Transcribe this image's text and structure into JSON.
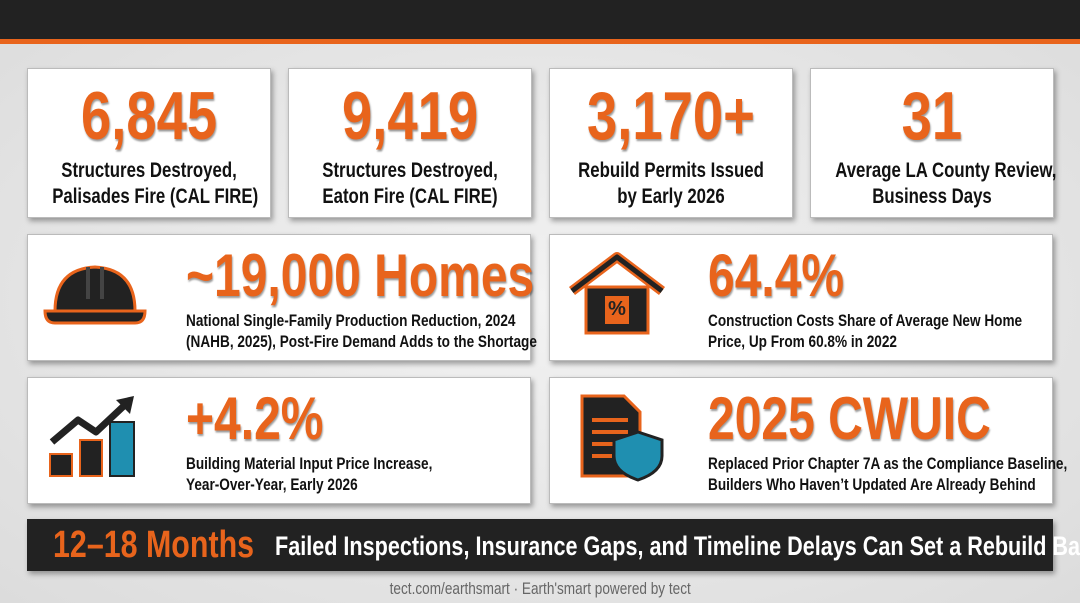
{
  "stats": [
    {
      "value": "6,845",
      "label": [
        "Structures Destroyed,",
        "Palisades Fire (CAL FIRE)"
      ]
    },
    {
      "value": "9,419",
      "label": [
        "Structures Destroyed,",
        "Eaton Fire (CAL FIRE)"
      ]
    },
    {
      "value": "3,170+",
      "label": [
        "Rebuild Permits Issued",
        "by Early 2026"
      ]
    },
    {
      "value": "31",
      "label": [
        "Average LA County Review,",
        "Business Days"
      ]
    }
  ],
  "highlights": [
    {
      "value": "~19,000 Homes",
      "label": [
        "National Single-Family Production Reduction, 2024",
        "(NAHB, 2025), Post-Fire Demand Adds to the Shortage"
      ]
    },
    {
      "value": "64.4%",
      "label": [
        "Construction Costs Share of Average New Home",
        "Price, Up From 60.8% in 2022"
      ]
    },
    {
      "value": "+4.2%",
      "label": [
        "Building Material Input Price Increase,",
        "Year-Over-Year, Early 2026"
      ]
    },
    {
      "value": "2025 CWUIC",
      "label": [
        "Replaced Prior Chapter 7A as the Compliance Baseline,",
        "Builders Who Haven’t Updated Are Already Behind"
      ]
    }
  ],
  "banner": {
    "value": "12–18 Months",
    "text": "Failed Inspections, Insurance Gaps, and Timeline Delays Can Set a Rebuild Back"
  },
  "footer": "tect.com/earthsmart · Earth'smart powered by tect"
}
